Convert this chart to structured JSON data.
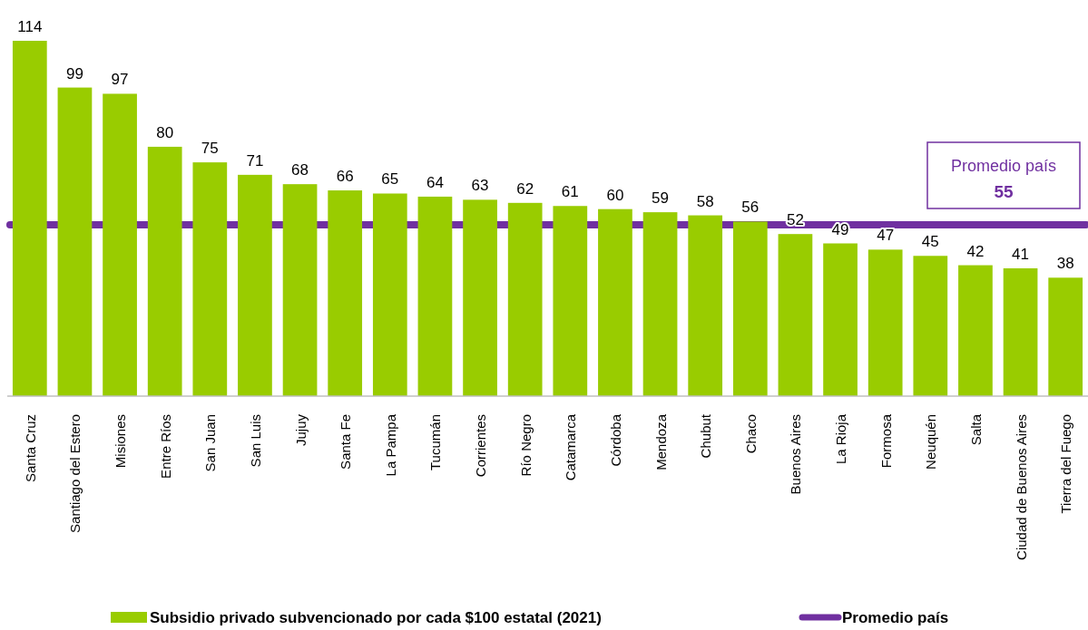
{
  "chart_data": {
    "type": "bar",
    "categories": [
      "Santa Cruz",
      "Santiago del Estero",
      "Misiones",
      "Entre Ríos",
      "San Juan",
      "San Luis",
      "Jujuy",
      "Santa Fe",
      "La Pampa",
      "Tucumán",
      "Corrientes",
      "Río Negro",
      "Catamarca",
      "Córdoba",
      "Mendoza",
      "Chubut",
      "Chaco",
      "Buenos Aires",
      "La Rioja",
      "Formosa",
      "Neuquén",
      "Salta",
      "Ciudad de Buenos Aires",
      "Tierra del Fuego"
    ],
    "series": [
      {
        "name": "Subsidio privado subvencionado por cada $100 estatal (2021)",
        "color": "#99cc00",
        "values": [
          114,
          99,
          97,
          80,
          75,
          71,
          68,
          66,
          65,
          64,
          63,
          62,
          61,
          60,
          59,
          58,
          56,
          52,
          49,
          47,
          45,
          42,
          41,
          38
        ]
      }
    ],
    "ref_lines": [
      {
        "axis": "y",
        "value": 55,
        "label": "Promedio país",
        "color": "#7030a0"
      }
    ],
    "annotations": [
      "55"
    ],
    "data_labels": true,
    "legend": "bottom",
    "grid": false
  }
}
